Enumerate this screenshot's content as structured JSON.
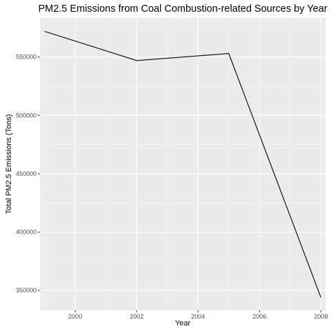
{
  "chart_data": {
    "type": "line",
    "title": "PM2.5 Emissions from Coal Combustion-related Sources by Year",
    "xlabel": "Year",
    "ylabel": "Total PM2.5 Emissions (Tons)",
    "x": [
      1999,
      2002,
      2005,
      2008
    ],
    "series": [
      {
        "values": [
          572000,
          547000,
          553000,
          344000
        ]
      }
    ],
    "xlim": [
      1998.85,
      2008.15
    ],
    "ylim": [
      333000,
      583500
    ],
    "xticks": [
      2000,
      2002,
      2004,
      2006,
      2008
    ],
    "xtick_labels": [
      "2000",
      "2002",
      "2004",
      "2006",
      "2008"
    ],
    "yticks": [
      350000,
      400000,
      450000,
      500000,
      550000
    ],
    "ytick_labels": [
      "350000",
      "400000",
      "450000",
      "500000",
      "550000"
    ],
    "grid": true,
    "legend": "none",
    "colors": {
      "panel_background": "#ebebeb",
      "grid_major": "#ffffff",
      "grid_minor": "#f5f5f5",
      "line": "#000000",
      "tick_text": "#4d4d4d",
      "tick_mark": "#333333"
    }
  }
}
